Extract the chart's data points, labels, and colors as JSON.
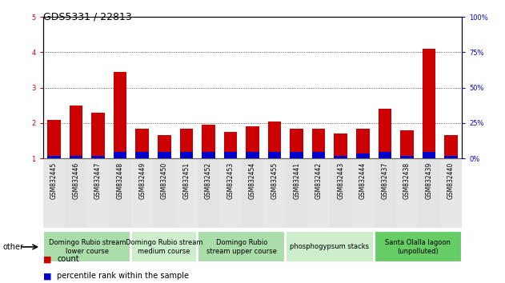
{
  "title": "GDS5331 / 22813",
  "samples": [
    "GSM832445",
    "GSM832446",
    "GSM832447",
    "GSM832448",
    "GSM832449",
    "GSM832450",
    "GSM832451",
    "GSM832452",
    "GSM832453",
    "GSM832454",
    "GSM832455",
    "GSM832441",
    "GSM832442",
    "GSM832443",
    "GSM832444",
    "GSM832437",
    "GSM832438",
    "GSM832439",
    "GSM832440"
  ],
  "count_values": [
    2.1,
    2.5,
    2.3,
    3.45,
    1.85,
    1.65,
    1.85,
    1.95,
    1.75,
    1.9,
    2.05,
    1.85,
    1.85,
    1.7,
    1.85,
    2.4,
    1.8,
    4.1,
    1.65
  ],
  "percentile_values": [
    0.08,
    0.08,
    0.08,
    0.18,
    0.18,
    0.18,
    0.18,
    0.18,
    0.18,
    0.18,
    0.18,
    0.18,
    0.18,
    0.08,
    0.15,
    0.18,
    0.08,
    0.18,
    0.08
  ],
  "count_color": "#cc0000",
  "percentile_color": "#0000cc",
  "ylim_left": [
    1,
    5
  ],
  "ylim_right": [
    0,
    100
  ],
  "yticks_left": [
    1,
    2,
    3,
    4,
    5
  ],
  "yticks_right": [
    0,
    25,
    50,
    75,
    100
  ],
  "bar_width": 0.6,
  "groups": [
    {
      "label": "Domingo Rubio stream\nlower course",
      "start": 0,
      "end": 4,
      "color": "#aaddaa"
    },
    {
      "label": "Domingo Rubio stream\nmedium course",
      "start": 4,
      "end": 7,
      "color": "#cceecc"
    },
    {
      "label": "Domingo Rubio\nstream upper course",
      "start": 7,
      "end": 11,
      "color": "#aaddaa"
    },
    {
      "label": "phosphogypsum stacks",
      "start": 11,
      "end": 15,
      "color": "#cceecc"
    },
    {
      "label": "Santa Olalla lagoon\n(unpolluted)",
      "start": 15,
      "end": 19,
      "color": "#66cc66"
    }
  ],
  "other_label": "other",
  "title_fontsize": 9,
  "tick_fontsize": 6,
  "sample_fontsize": 5.5,
  "legend_fontsize": 7,
  "group_fontsize": 6
}
